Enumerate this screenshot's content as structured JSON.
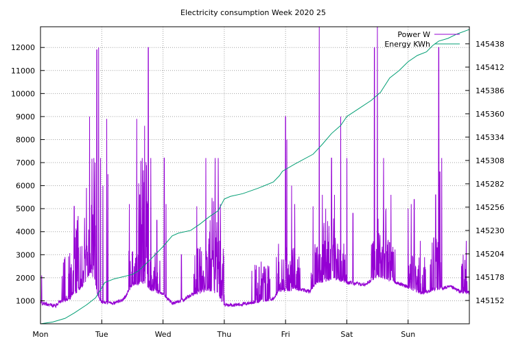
{
  "chart_data": {
    "type": "line",
    "title": "Electricity consumption Week 2020 25",
    "x_tick_labels": [
      "Mon",
      "Tue",
      "Wed",
      "Thu",
      "Fri",
      "Sat",
      "Sun"
    ],
    "x_range_days": [
      0,
      7
    ],
    "y_left": {
      "lim": [
        0,
        12900
      ],
      "ticks": [
        1000,
        2000,
        3000,
        4000,
        5000,
        6000,
        7000,
        8000,
        9000,
        10000,
        11000,
        12000
      ]
    },
    "y_right": {
      "lim": [
        145126,
        145457
      ],
      "ticks": [
        145152,
        145178,
        145204,
        145230,
        145256,
        145282,
        145308,
        145334,
        145360,
        145386,
        145412,
        145438
      ]
    },
    "grid": true,
    "legend_position": "top-right",
    "series": [
      {
        "name": "Power W",
        "axis": "left",
        "color": "#9400d3",
        "baseline": [
          [
            0.0,
            900
          ],
          [
            0.25,
            780
          ],
          [
            0.3,
            950
          ],
          [
            0.45,
            1050
          ],
          [
            0.55,
            1300
          ],
          [
            0.7,
            1700
          ],
          [
            0.8,
            2200
          ],
          [
            0.88,
            2000
          ],
          [
            0.95,
            1100
          ],
          [
            1.0,
            950
          ],
          [
            1.2,
            900
          ],
          [
            1.35,
            1050
          ],
          [
            1.5,
            1700
          ],
          [
            1.7,
            1800
          ],
          [
            1.8,
            1500
          ],
          [
            2.0,
            1300
          ],
          [
            2.15,
            900
          ],
          [
            2.3,
            1000
          ],
          [
            2.5,
            1300
          ],
          [
            2.75,
            1500
          ],
          [
            2.9,
            1300
          ],
          [
            3.0,
            800
          ],
          [
            3.3,
            850
          ],
          [
            3.5,
            950
          ],
          [
            3.8,
            1100
          ],
          [
            3.9,
            1450
          ],
          [
            4.2,
            1500
          ],
          [
            4.4,
            1400
          ],
          [
            4.5,
            1800
          ],
          [
            4.8,
            2000
          ],
          [
            5.0,
            1800
          ],
          [
            5.3,
            1700
          ],
          [
            5.5,
            2100
          ],
          [
            5.8,
            1800
          ],
          [
            6.0,
            1600
          ],
          [
            6.25,
            1300
          ],
          [
            6.4,
            1500
          ],
          [
            6.7,
            1600
          ],
          [
            6.85,
            1400
          ],
          [
            7.0,
            1350
          ]
        ],
        "bursts": [
          [
            0.34,
            0.42,
            3000
          ],
          [
            0.45,
            0.95,
            3500
          ],
          [
            0.55,
            0.62,
            5200
          ],
          [
            0.78,
            0.9,
            7200
          ],
          [
            1.43,
            1.95,
            3200
          ],
          [
            1.6,
            1.75,
            7200
          ],
          [
            2.5,
            3.0,
            3400
          ],
          [
            2.7,
            2.95,
            5500
          ],
          [
            3.5,
            3.75,
            2600
          ],
          [
            3.87,
            4.25,
            3600
          ],
          [
            4.4,
            4.55,
            3800
          ],
          [
            4.5,
            5.0,
            3600
          ],
          [
            4.6,
            4.85,
            5000
          ],
          [
            5.4,
            5.8,
            3600
          ],
          [
            5.5,
            5.7,
            5200
          ],
          [
            6.0,
            6.3,
            3000
          ],
          [
            6.35,
            6.55,
            3800
          ],
          [
            6.85,
            6.97,
            2800
          ]
        ],
        "spikes": [
          [
            0.02,
            2100
          ],
          [
            0.55,
            5100
          ],
          [
            0.6,
            4500
          ],
          [
            0.72,
            4600
          ],
          [
            0.75,
            5900
          ],
          [
            0.8,
            9000
          ],
          [
            0.87,
            7200
          ],
          [
            0.89,
            7000
          ],
          [
            0.92,
            11900
          ],
          [
            0.95,
            12000
          ],
          [
            0.98,
            7200
          ],
          [
            1.02,
            6000
          ],
          [
            1.08,
            8900
          ],
          [
            1.1,
            6500
          ],
          [
            1.45,
            5200
          ],
          [
            1.57,
            8900
          ],
          [
            1.62,
            5600
          ],
          [
            1.66,
            7200
          ],
          [
            1.7,
            8600
          ],
          [
            1.76,
            12000
          ],
          [
            1.8,
            7200
          ],
          [
            1.9,
            4500
          ],
          [
            2.02,
            7200
          ],
          [
            2.05,
            5200
          ],
          [
            2.3,
            3000
          ],
          [
            2.55,
            5100
          ],
          [
            2.7,
            7200
          ],
          [
            2.85,
            7200
          ],
          [
            2.9,
            7200
          ],
          [
            3.45,
            2300
          ],
          [
            3.6,
            2700
          ],
          [
            3.85,
            2900
          ],
          [
            4.0,
            9000
          ],
          [
            4.02,
            8000
          ],
          [
            4.1,
            6000
          ],
          [
            4.15,
            5200
          ],
          [
            4.45,
            5100
          ],
          [
            4.55,
            12950
          ],
          [
            4.6,
            5600
          ],
          [
            4.75,
            7200
          ],
          [
            4.8,
            5600
          ],
          [
            4.9,
            9000
          ],
          [
            5.0,
            7200
          ],
          [
            5.1,
            4800
          ],
          [
            5.45,
            12000
          ],
          [
            5.5,
            12950
          ],
          [
            5.6,
            7200
          ],
          [
            5.72,
            5600
          ],
          [
            6.0,
            5000
          ],
          [
            6.05,
            5200
          ],
          [
            6.1,
            5400
          ],
          [
            6.2,
            3600
          ],
          [
            6.45,
            5600
          ],
          [
            6.5,
            12000
          ],
          [
            6.52,
            6600
          ],
          [
            6.55,
            7200
          ],
          [
            6.9,
            3000
          ],
          [
            6.95,
            3600
          ]
        ]
      },
      {
        "name": "Energy KWh",
        "axis": "right",
        "color": "#009e73",
        "points": [
          [
            0.0,
            145126
          ],
          [
            0.2,
            145128
          ],
          [
            0.4,
            145132
          ],
          [
            0.55,
            145138
          ],
          [
            0.75,
            145147
          ],
          [
            0.9,
            145155
          ],
          [
            1.0,
            145166
          ],
          [
            1.05,
            145172
          ],
          [
            1.2,
            145176
          ],
          [
            1.5,
            145181
          ],
          [
            1.6,
            145185
          ],
          [
            1.8,
            145198
          ],
          [
            2.0,
            145212
          ],
          [
            2.15,
            145224
          ],
          [
            2.25,
            145227
          ],
          [
            2.45,
            145230
          ],
          [
            2.6,
            145237
          ],
          [
            2.75,
            145245
          ],
          [
            2.9,
            145252
          ],
          [
            3.0,
            145265
          ],
          [
            3.1,
            145268
          ],
          [
            3.3,
            145271
          ],
          [
            3.55,
            145277
          ],
          [
            3.8,
            145284
          ],
          [
            3.9,
            145291
          ],
          [
            3.95,
            145296
          ],
          [
            4.15,
            145304
          ],
          [
            4.45,
            145315
          ],
          [
            4.6,
            145326
          ],
          [
            4.75,
            145338
          ],
          [
            4.9,
            145347
          ],
          [
            5.0,
            145357
          ],
          [
            5.2,
            145366
          ],
          [
            5.4,
            145375
          ],
          [
            5.55,
            145384
          ],
          [
            5.7,
            145400
          ],
          [
            5.85,
            145408
          ],
          [
            6.0,
            145418
          ],
          [
            6.15,
            145425
          ],
          [
            6.3,
            145429
          ],
          [
            6.4,
            145436
          ],
          [
            6.5,
            145441
          ],
          [
            6.65,
            145444
          ],
          [
            6.8,
            145449
          ],
          [
            7.0,
            145454
          ]
        ]
      }
    ]
  }
}
